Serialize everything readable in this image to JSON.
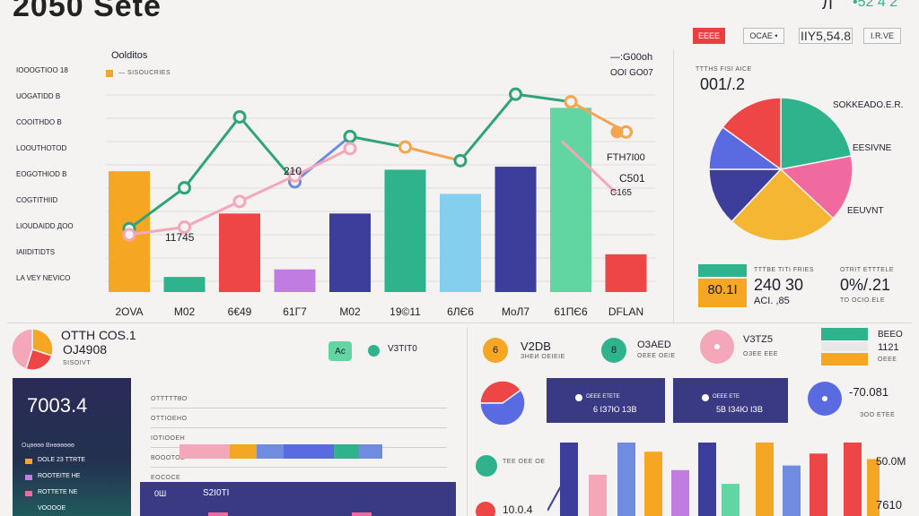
{
  "header": {
    "title": "2050 Sete",
    "top_right_glyph": "Л",
    "top_right_values": "•52 4 2",
    "chips": [
      "ЕЕЕЕ",
      "OCAE •",
      "IIY5,54.8",
      "I.R.VE"
    ],
    "accent_chip_color": "#e84040"
  },
  "main_chart": {
    "title": "Oolditos",
    "legend_label": "— SISOUCRIES",
    "top_right_label": "—:G00oh",
    "top_right_sub": "OOI GO07",
    "left_labels": [
      "IOOOGTIOO 18",
      "UOGATIDD B",
      "COOITHDO B",
      "LOOUTHOTOD",
      "EOGOTHIOD B",
      "COGTITHIID",
      "LIOUDAIDD ДOO",
      "IAIIDITIDTS",
      "LA VEY NEVICO"
    ],
    "annotations": [
      "210",
      "11745",
      "C501",
      "C165",
      "FTH7I00"
    ],
    "colors": {
      "teal_line": "#2fa37c",
      "pink_line": "#f4a7b9",
      "orange_line": "#f3a550",
      "blue_line": "#6f8ce0"
    }
  },
  "chart_data": {
    "type": "bar",
    "title": "Oolditos",
    "categories": [
      "2OVA",
      "M02",
      "6€49",
      "61Г7",
      "M02",
      "19©11",
      "6ЛЄ6",
      "MoЛ7",
      "61ПЄ6",
      "DFLAN"
    ],
    "series": [
      {
        "values": [
          80,
          10,
          52,
          15,
          52,
          81,
          65,
          83,
          122,
          25
        ],
        "colors": [
          "#f5a623",
          "#2fb38c",
          "#ee4646",
          "#c07ce0",
          "#3d3d9b",
          "#2fb38c",
          "#85cfee",
          "#3d3d9b",
          "#62d6a2",
          "#ee4646"
        ]
      },
      {
        "values": [
          42,
          69,
          116,
          73,
          103,
          96,
          87,
          131,
          126,
          106
        ]
      },
      {
        "values": [
          38,
          43,
          60,
          77,
          95,
          null,
          null,
          null,
          null,
          null
        ]
      },
      {
        "values": [
          null,
          null,
          null,
          null,
          95,
          100,
          82,
          110,
          126,
          106
        ]
      }
    ],
    "ylim": [
      0,
      140
    ]
  },
  "side_panel": {
    "small_header": "TTTHS FISI AICE",
    "value": "001/.2",
    "labels": [
      "SOKKEADO.E.R.",
      "EESIVNE",
      "EEUVNT"
    ],
    "pie": [
      {
        "value": 22,
        "color": "#2fb38c"
      },
      {
        "value": 15,
        "color": "#f06aa0"
      },
      {
        "value": 25,
        "color": "#f5b733"
      },
      {
        "value": 13,
        "color": "#3d3d9b"
      },
      {
        "value": 10,
        "color": "#5a6ae0"
      },
      {
        "value": 15,
        "color": "#ee4646"
      }
    ],
    "stats": [
      {
        "value": "80.1I",
        "caption": ""
      },
      {
        "header": "TTTBE TITI FRIES",
        "value": "240 30",
        "caption": "ACI. ,85"
      },
      {
        "header": "OTRIT ETTTELE",
        "value": "0%/.21",
        "caption": "TO OCIO.ELE"
      }
    ],
    "chip_color_top": "#2fb38c",
    "chip_color_bottom": "#f5a623"
  },
  "bottom": {
    "pie_title": "ОТТН СОЅ.1",
    "pie_value": "ОЈ4908",
    "pie_sub": "SISOIVT",
    "mini_pie": [
      {
        "value": 30,
        "color": "#f5a623"
      },
      {
        "value": 25,
        "color": "#ee4646"
      },
      {
        "value": 45,
        "color": "#f4a7b9"
      }
    ],
    "dark_card_value": "7003.4",
    "dark_card_title": "Oцөөөө Внөөөөөө",
    "dark_card_rows": [
      "DOLE 23 TTRTE",
      "ROOTEITE HE",
      "ROTTETE NE",
      "VOOOOE"
    ],
    "row_labels": [
      "ОТТТТТВО",
      "ОТТІОЕНО",
      "ІOТІООЕН",
      "ВОООТОЕ",
      "ЕОСОСЕ"
    ],
    "bar_row_colors": [
      "#f4a7b9",
      "#f5a623",
      "#6f8ce0",
      "#5a6ae0",
      "#2fb38c",
      "#6f8ce0"
    ],
    "badge_a": "Aс",
    "badge_v_value": "V3ТІТ0",
    "bottom_left_header": "0Ш",
    "bottom_left_value": "S2I0ТІ",
    "circle_items": [
      {
        "glyph": "6",
        "color": "#f5a623",
        "title": "V2DB",
        "sub": "ЗНЕИ ОЕІЕІЕ"
      },
      {
        "glyph": "8",
        "color": "#2fb38c",
        "title": "OЗAED",
        "sub": "ОЕЕЕ ОЕІЕ"
      },
      {
        "glyph": "",
        "color": "#f4a7b9",
        "title": "V3ТZ5",
        "sub": "ОЗЕЕ ЕЕЕ"
      }
    ],
    "navy_cards": [
      {
        "header": "ОЕЕЕ ЕТЕТЕ",
        "value": "6 ІЗ7Ю 1ЗВ"
      },
      {
        "header": "ОЕЕЕ ЕТЕ",
        "value": "5В ІЗ4Ю ІЗВ"
      }
    ],
    "blue_value": "-70.081",
    "blue_sub": "ЗОО ЕТЕЕ",
    "right_small": [
      "ВЕЕО",
      "1121",
      "ОЕЕЕ"
    ],
    "lower_items": [
      {
        "color": "#2fb38c",
        "label": "ТЕЕ ОЕЕ ОЕ"
      },
      {
        "color": "#ee4646",
        "label": "10.0.4"
      }
    ],
    "bottom_bars": [
      {
        "value": 80,
        "color": "#3d3d9b"
      },
      {
        "value": 45,
        "color": "#f4a7b9"
      },
      {
        "value": 80,
        "color": "#6f8ce0"
      },
      {
        "value": 70,
        "color": "#f5a623"
      },
      {
        "value": 50,
        "color": "#c07ce0"
      },
      {
        "value": 80,
        "color": "#3d3d9b"
      },
      {
        "value": 35,
        "color": "#62d6a2"
      },
      {
        "value": 80,
        "color": "#f5a623"
      },
      {
        "value": 55,
        "color": "#6f8ce0"
      },
      {
        "value": 68,
        "color": "#ee4646"
      },
      {
        "value": 80,
        "color": "#ee4646"
      },
      {
        "value": 62,
        "color": "#f5a623"
      },
      {
        "value": 80,
        "color": "#2fb38c"
      }
    ],
    "bottom_right_values": [
      "50.0M",
      "7610"
    ]
  }
}
